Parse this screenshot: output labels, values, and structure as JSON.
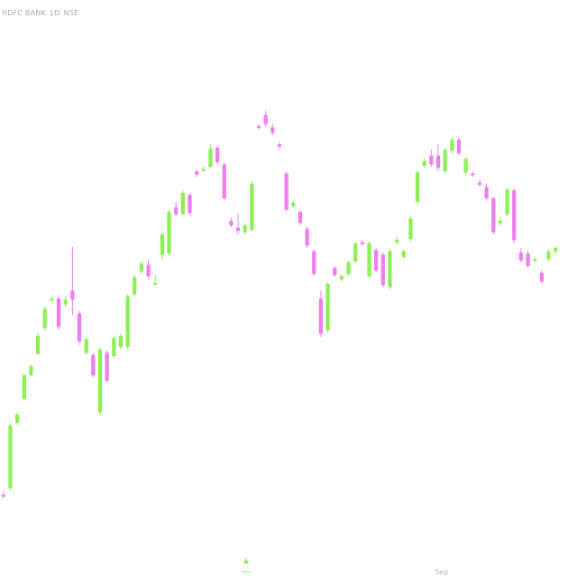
{
  "header": {
    "symbol": "HDFC BANK",
    "interval": "1D",
    "exchange": "NSE"
  },
  "colors": {
    "up": "#8cf055",
    "down": "#f07df0",
    "background": "#ffffff",
    "axis_text": "#b8b8b8",
    "marker": "#8cf055"
  },
  "chart_data": {
    "type": "candlestick",
    "x_labels": [
      "Sep"
    ],
    "y_scale": "linear",
    "grid": false,
    "legend": "none",
    "candles": [
      {
        "o": 0.9,
        "h": 1.3,
        "l": 0.6,
        "c": 0.8,
        "dir": "down"
      },
      {
        "o": 1.5,
        "h": 7.2,
        "l": 1.3,
        "c": 7.0,
        "dir": "up"
      },
      {
        "o": 7.3,
        "h": 8.2,
        "l": 7.1,
        "c": 8.0,
        "dir": "up"
      },
      {
        "o": 9.4,
        "h": 11.7,
        "l": 9.3,
        "c": 11.5,
        "dir": "up"
      },
      {
        "o": 11.5,
        "h": 12.5,
        "l": 11.4,
        "c": 12.3,
        "dir": "up"
      },
      {
        "o": 13.4,
        "h": 15.2,
        "l": 13.3,
        "c": 15.0,
        "dir": "up"
      },
      {
        "o": 15.7,
        "h": 17.6,
        "l": 15.5,
        "c": 17.4,
        "dir": "up"
      },
      {
        "o": 18.2,
        "h": 18.5,
        "l": 18.0,
        "c": 18.3,
        "dir": "up"
      },
      {
        "o": 18.3,
        "h": 18.6,
        "l": 15.6,
        "c": 15.8,
        "dir": "down"
      },
      {
        "o": 18.2,
        "h": 18.6,
        "l": 17.6,
        "c": 17.8,
        "dir": "up"
      },
      {
        "o": 19.0,
        "h": 22.9,
        "l": 16.8,
        "c": 18.2,
        "dir": "down"
      },
      {
        "o": 17.0,
        "h": 17.2,
        "l": 14.2,
        "c": 14.5,
        "dir": "down"
      },
      {
        "o": 14.7,
        "h": 14.9,
        "l": 13.3,
        "c": 13.5,
        "dir": "up"
      },
      {
        "o": 13.3,
        "h": 13.5,
        "l": 11.3,
        "c": 11.5,
        "dir": "down"
      },
      {
        "o": 8.2,
        "h": 14.0,
        "l": 8.0,
        "c": 13.8,
        "dir": "up"
      },
      {
        "o": 13.5,
        "h": 13.7,
        "l": 10.9,
        "c": 11.0,
        "dir": "down"
      },
      {
        "o": 13.2,
        "h": 15.0,
        "l": 13.0,
        "c": 14.8,
        "dir": "up"
      },
      {
        "o": 14.0,
        "h": 15.2,
        "l": 13.8,
        "c": 15.0,
        "dir": "up"
      },
      {
        "o": 14.0,
        "h": 18.7,
        "l": 13.8,
        "c": 18.5,
        "dir": "up"
      },
      {
        "o": 18.7,
        "h": 20.4,
        "l": 18.5,
        "c": 20.2,
        "dir": "up"
      },
      {
        "o": 20.7,
        "h": 21.6,
        "l": 20.5,
        "c": 21.4,
        "dir": "up"
      },
      {
        "o": 21.3,
        "h": 21.8,
        "l": 20.0,
        "c": 20.3,
        "dir": "down"
      },
      {
        "o": 19.7,
        "h": 20.4,
        "l": 19.5,
        "c": 19.6,
        "dir": "up"
      },
      {
        "o": 22.2,
        "h": 24.2,
        "l": 21.7,
        "c": 24.0,
        "dir": "up"
      },
      {
        "o": 22.3,
        "h": 26.2,
        "l": 22.1,
        "c": 26.0,
        "dir": "up"
      },
      {
        "o": 26.4,
        "h": 26.9,
        "l": 25.6,
        "c": 25.8,
        "dir": "down"
      },
      {
        "o": 25.8,
        "h": 27.9,
        "l": 25.7,
        "c": 27.7,
        "dir": "up"
      },
      {
        "o": 27.5,
        "h": 27.7,
        "l": 25.7,
        "c": 25.9,
        "dir": "down"
      },
      {
        "o": 29.3,
        "h": 29.8,
        "l": 29.1,
        "c": 29.6,
        "dir": "down"
      },
      {
        "o": 29.7,
        "h": 30.0,
        "l": 29.6,
        "c": 29.8,
        "dir": "up"
      },
      {
        "o": 30.0,
        "h": 32.0,
        "l": 29.9,
        "c": 31.6,
        "dir": "up"
      },
      {
        "o": 31.7,
        "h": 31.9,
        "l": 30.2,
        "c": 30.4,
        "dir": "down"
      },
      {
        "o": 30.2,
        "h": 30.4,
        "l": 27.0,
        "c": 27.2,
        "dir": "down"
      },
      {
        "o": 25.2,
        "h": 25.5,
        "l": 24.6,
        "c": 24.8,
        "dir": "down"
      },
      {
        "o": 24.6,
        "h": 25.8,
        "l": 24.0,
        "c": 24.3,
        "dir": "down"
      },
      {
        "o": 24.2,
        "h": 25.0,
        "l": 24.0,
        "c": 24.8,
        "dir": "up"
      },
      {
        "o": 24.4,
        "h": 28.7,
        "l": 24.2,
        "c": 28.5,
        "dir": "up"
      },
      {
        "o": 33.5,
        "h": 33.8,
        "l": 33.3,
        "c": 33.6,
        "dir": "down"
      },
      {
        "o": 34.6,
        "h": 35.0,
        "l": 33.5,
        "c": 33.8,
        "dir": "down"
      },
      {
        "o": 33.5,
        "h": 33.8,
        "l": 32.8,
        "c": 33.0,
        "dir": "down"
      },
      {
        "o": 32.0,
        "h": 32.2,
        "l": 31.5,
        "c": 31.8,
        "dir": "down"
      },
      {
        "o": 29.4,
        "h": 29.6,
        "l": 26.0,
        "c": 26.2,
        "dir": "down"
      },
      {
        "o": 26.5,
        "h": 27.0,
        "l": 26.3,
        "c": 26.8,
        "dir": "up"
      },
      {
        "o": 26.0,
        "h": 26.2,
        "l": 24.8,
        "c": 25.0,
        "dir": "down"
      },
      {
        "o": 24.5,
        "h": 24.7,
        "l": 22.8,
        "c": 23.0,
        "dir": "down"
      },
      {
        "o": 22.5,
        "h": 22.7,
        "l": 20.3,
        "c": 20.5,
        "dir": "down"
      },
      {
        "o": 18.3,
        "h": 19.0,
        "l": 14.9,
        "c": 15.2,
        "dir": "down"
      },
      {
        "o": 15.5,
        "h": 19.8,
        "l": 15.3,
        "c": 19.6,
        "dir": "up"
      },
      {
        "o": 20.4,
        "h": 21.2,
        "l": 20.2,
        "c": 21.0,
        "dir": "down"
      },
      {
        "o": 20.0,
        "h": 20.5,
        "l": 19.8,
        "c": 20.3,
        "dir": "up"
      },
      {
        "o": 20.5,
        "h": 21.7,
        "l": 20.3,
        "c": 21.5,
        "dir": "up"
      },
      {
        "o": 21.6,
        "h": 23.4,
        "l": 21.4,
        "c": 23.2,
        "dir": "up"
      },
      {
        "o": 23.2,
        "h": 23.5,
        "l": 23.0,
        "c": 23.3,
        "dir": "down"
      },
      {
        "o": 20.3,
        "h": 23.4,
        "l": 20.1,
        "c": 23.2,
        "dir": "up"
      },
      {
        "o": 22.6,
        "h": 22.8,
        "l": 20.6,
        "c": 20.8,
        "dir": "down"
      },
      {
        "o": 22.2,
        "h": 22.4,
        "l": 19.3,
        "c": 19.5,
        "dir": "down"
      },
      {
        "o": 19.3,
        "h": 22.7,
        "l": 19.1,
        "c": 22.5,
        "dir": "up"
      },
      {
        "o": 23.3,
        "h": 23.8,
        "l": 23.1,
        "c": 23.5,
        "dir": "up"
      },
      {
        "o": 22.0,
        "h": 22.7,
        "l": 21.8,
        "c": 22.5,
        "dir": "up"
      },
      {
        "o": 23.6,
        "h": 25.6,
        "l": 23.4,
        "c": 25.4,
        "dir": "up"
      },
      {
        "o": 26.9,
        "h": 29.7,
        "l": 26.7,
        "c": 29.5,
        "dir": "up"
      },
      {
        "o": 30.1,
        "h": 30.8,
        "l": 29.9,
        "c": 30.5,
        "dir": "up"
      },
      {
        "o": 31.0,
        "h": 31.5,
        "l": 30.0,
        "c": 30.2,
        "dir": "down"
      },
      {
        "o": 31.0,
        "h": 32.0,
        "l": 29.6,
        "c": 29.9,
        "dir": "down"
      },
      {
        "o": 29.6,
        "h": 31.7,
        "l": 29.4,
        "c": 31.5,
        "dir": "up"
      },
      {
        "o": 31.4,
        "h": 32.6,
        "l": 31.2,
        "c": 32.4,
        "dir": "up"
      },
      {
        "o": 32.4,
        "h": 32.6,
        "l": 31.0,
        "c": 31.2,
        "dir": "down"
      },
      {
        "o": 30.7,
        "h": 30.9,
        "l": 29.3,
        "c": 29.5,
        "dir": "up"
      },
      {
        "o": 29.3,
        "h": 29.6,
        "l": 29.1,
        "c": 29.4,
        "dir": "down"
      },
      {
        "o": 28.6,
        "h": 28.9,
        "l": 28.2,
        "c": 28.4,
        "dir": "down"
      },
      {
        "o": 28.2,
        "h": 28.5,
        "l": 27.0,
        "c": 27.2,
        "dir": "down"
      },
      {
        "o": 27.2,
        "h": 27.4,
        "l": 24.0,
        "c": 24.2,
        "dir": "down"
      },
      {
        "o": 25.0,
        "h": 25.5,
        "l": 24.8,
        "c": 25.2,
        "dir": "up"
      },
      {
        "o": 25.8,
        "h": 28.2,
        "l": 25.6,
        "c": 28.0,
        "dir": "up"
      },
      {
        "o": 27.9,
        "h": 28.1,
        "l": 23.2,
        "c": 23.5,
        "dir": "down"
      },
      {
        "o": 22.4,
        "h": 22.8,
        "l": 21.5,
        "c": 21.7,
        "dir": "down"
      },
      {
        "o": 22.3,
        "h": 22.6,
        "l": 21.0,
        "c": 21.2,
        "dir": "down"
      },
      {
        "o": 21.8,
        "h": 22.0,
        "l": 21.6,
        "c": 21.8,
        "dir": "up"
      },
      {
        "o": 20.6,
        "h": 20.8,
        "l": 19.6,
        "c": 19.8,
        "dir": "down"
      },
      {
        "o": 21.8,
        "h": 22.7,
        "l": 21.6,
        "c": 22.5,
        "dir": "up"
      },
      {
        "o": 22.5,
        "h": 23.0,
        "l": 22.2,
        "c": 22.8,
        "dir": "up"
      }
    ],
    "y_min": 0,
    "y_max": 40
  }
}
